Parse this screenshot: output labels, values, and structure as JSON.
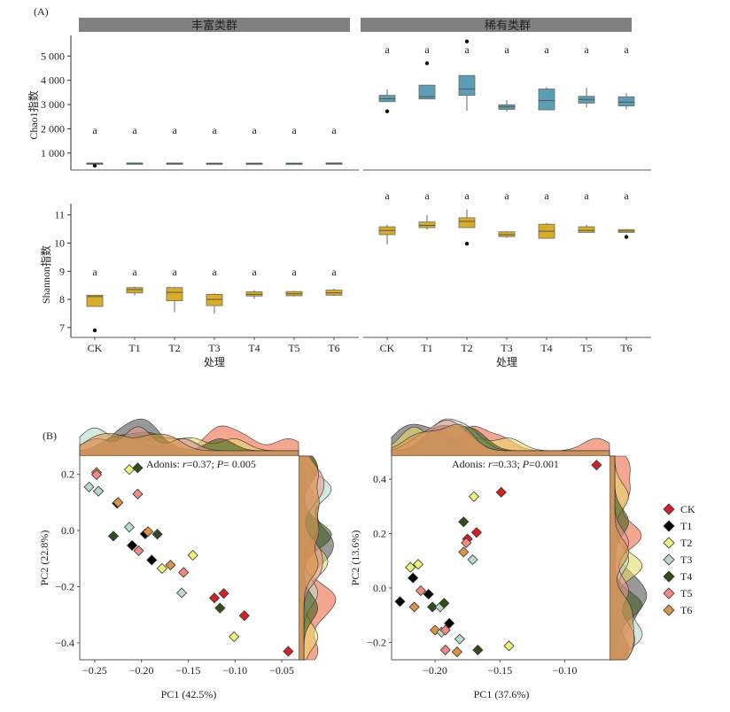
{
  "panel_labels": {
    "a": "(A)",
    "b": "(B)"
  },
  "chart_data": [
    {
      "id": "A_chao1",
      "type": "box",
      "facets": [
        "丰富类群",
        "稀有类群"
      ],
      "categories": [
        "CK",
        "T1",
        "T2",
        "T3",
        "T4",
        "T5",
        "T6"
      ],
      "ylabel": "Chao1指数",
      "yticks": [
        1000,
        2000,
        3000,
        4000,
        5000
      ],
      "ytick_labels": [
        "1 000",
        "2 000",
        "3 000",
        "4 000",
        "5 000"
      ],
      "ylim": [
        300,
        5850
      ],
      "color": "#5b9eb5",
      "significance": [
        "a",
        "a",
        "a",
        "a",
        "a",
        "a",
        "a"
      ],
      "series": [
        {
          "facet": "丰富类群",
          "boxes": [
            {
              "q1": 570,
              "median": 580,
              "q3": 590,
              "min": 560,
              "max": 600,
              "outliers": [
                480
              ]
            },
            {
              "q1": 575,
              "median": 582,
              "q3": 590,
              "min": 570,
              "max": 595,
              "outliers": []
            },
            {
              "q1": 572,
              "median": 580,
              "q3": 590,
              "min": 565,
              "max": 598,
              "outliers": []
            },
            {
              "q1": 572,
              "median": 578,
              "q3": 585,
              "min": 565,
              "max": 590,
              "outliers": []
            },
            {
              "q1": 572,
              "median": 578,
              "q3": 585,
              "min": 565,
              "max": 590,
              "outliers": []
            },
            {
              "q1": 572,
              "median": 578,
              "q3": 585,
              "min": 565,
              "max": 590,
              "outliers": []
            },
            {
              "q1": 570,
              "median": 580,
              "q3": 595,
              "min": 565,
              "max": 600,
              "outliers": []
            }
          ]
        },
        {
          "facet": "稀有类群",
          "boxes": [
            {
              "q1": 3120,
              "median": 3240,
              "q3": 3380,
              "min": 3120,
              "max": 3620,
              "outliers": [
                2720
              ]
            },
            {
              "q1": 3230,
              "median": 3320,
              "q3": 3800,
              "min": 3230,
              "max": 3800,
              "outliers": [
                4700
              ]
            },
            {
              "q1": 3380,
              "median": 3640,
              "q3": 4200,
              "min": 2740,
              "max": 4200,
              "outliers": [
                5600
              ]
            },
            {
              "q1": 2800,
              "median": 2900,
              "q3": 2990,
              "min": 2700,
              "max": 3180,
              "outliers": []
            },
            {
              "q1": 2780,
              "median": 3160,
              "q3": 3640,
              "min": 2780,
              "max": 3720,
              "outliers": []
            },
            {
              "q1": 3060,
              "median": 3210,
              "q3": 3340,
              "min": 2880,
              "max": 3690,
              "outliers": []
            },
            {
              "q1": 2940,
              "median": 3100,
              "q3": 3320,
              "min": 2800,
              "max": 3470,
              "outliers": []
            }
          ]
        }
      ]
    },
    {
      "id": "A_shannon",
      "type": "box",
      "facets": [
        "丰富类群",
        "稀有类群"
      ],
      "categories": [
        "CK",
        "T1",
        "T2",
        "T3",
        "T4",
        "T5",
        "T6"
      ],
      "xlabel": "处理",
      "ylabel": "Shannon指数",
      "yticks": [
        7,
        8,
        9,
        10,
        11
      ],
      "ylim": [
        6.65,
        11.4
      ],
      "color": "#d9ad2c",
      "significance": [
        "a",
        "a",
        "a",
        "a",
        "a",
        "a",
        "a"
      ],
      "series": [
        {
          "facet": "丰富类群",
          "boxes": [
            {
              "q1": 7.75,
              "median": 8.1,
              "q3": 8.15,
              "min": 7.75,
              "max": 8.15,
              "outliers": [
                6.9
              ]
            },
            {
              "q1": 8.23,
              "median": 8.35,
              "q3": 8.42,
              "min": 8.15,
              "max": 8.45,
              "outliers": []
            },
            {
              "q1": 7.95,
              "median": 8.25,
              "q3": 8.42,
              "min": 7.55,
              "max": 8.45,
              "outliers": []
            },
            {
              "q1": 7.78,
              "median": 8.0,
              "q3": 8.18,
              "min": 7.5,
              "max": 8.22,
              "outliers": []
            },
            {
              "q1": 8.12,
              "median": 8.18,
              "q3": 8.27,
              "min": 8.02,
              "max": 8.33,
              "outliers": []
            },
            {
              "q1": 8.13,
              "median": 8.2,
              "q3": 8.28,
              "min": 8.1,
              "max": 8.3,
              "outliers": []
            },
            {
              "q1": 8.15,
              "median": 8.23,
              "q3": 8.33,
              "min": 8.12,
              "max": 8.38,
              "outliers": []
            }
          ]
        },
        {
          "facet": "稀有类群",
          "boxes": [
            {
              "q1": 10.3,
              "median": 10.45,
              "q3": 10.58,
              "min": 9.95,
              "max": 10.65,
              "outliers": []
            },
            {
              "q1": 10.55,
              "median": 10.63,
              "q3": 10.75,
              "min": 10.48,
              "max": 11.0,
              "outliers": []
            },
            {
              "q1": 10.55,
              "median": 10.77,
              "q3": 10.9,
              "min": 10.55,
              "max": 11.2,
              "outliers": [
                9.98
              ]
            },
            {
              "q1": 10.23,
              "median": 10.3,
              "q3": 10.4,
              "min": 10.18,
              "max": 10.42,
              "outliers": []
            },
            {
              "q1": 10.17,
              "median": 10.42,
              "q3": 10.67,
              "min": 10.17,
              "max": 10.72,
              "outliers": []
            },
            {
              "q1": 10.38,
              "median": 10.45,
              "q3": 10.58,
              "min": 10.38,
              "max": 10.65,
              "outliers": []
            },
            {
              "q1": 10.38,
              "median": 10.43,
              "q3": 10.48,
              "min": 10.38,
              "max": 10.5,
              "outliers": [
                10.22
              ]
            }
          ]
        }
      ]
    },
    {
      "id": "B_left",
      "type": "scatter",
      "xlabel": "PC1 (42.5%)",
      "ylabel": "PC2 (22.8%)",
      "xticks": [
        -0.25,
        -0.2,
        -0.15,
        -0.1,
        -0.05
      ],
      "xtick_labels": [
        "−0.25",
        "−0.20",
        "−0.15",
        "−0.10",
        "−0.05"
      ],
      "yticks": [
        0.2,
        0.0,
        -0.2,
        -0.4
      ],
      "ytick_labels": [
        "0.2",
        "0.0",
        "−0.2",
        "−0.4"
      ],
      "xlim": [
        -0.266,
        -0.032
      ],
      "ylim": [
        -0.46,
        0.265
      ],
      "annotation": {
        "prefix": "Adonis: ",
        "r_label": "r",
        "r_value": "=0.37; ",
        "p_label": "P",
        "p_value": "= 0.005"
      },
      "points": [
        {
          "group": "T6",
          "x": -0.248,
          "y": 0.207
        },
        {
          "group": "T5",
          "x": -0.248,
          "y": 0.199
        },
        {
          "group": "T3",
          "x": -0.256,
          "y": 0.155
        },
        {
          "group": "T3",
          "x": -0.246,
          "y": 0.14
        },
        {
          "group": "T2",
          "x": -0.213,
          "y": 0.217
        },
        {
          "group": "T4",
          "x": -0.204,
          "y": 0.223
        },
        {
          "group": "T5",
          "x": -0.204,
          "y": 0.13
        },
        {
          "group": "T1",
          "x": -0.226,
          "y": 0.097
        },
        {
          "group": "T6",
          "x": -0.225,
          "y": 0.1
        },
        {
          "group": "T3",
          "x": -0.213,
          "y": 0.012
        },
        {
          "group": "T4",
          "x": -0.23,
          "y": -0.02
        },
        {
          "group": "T1",
          "x": -0.196,
          "y": -0.012
        },
        {
          "group": "T6",
          "x": -0.193,
          "y": -0.004
        },
        {
          "group": "T4",
          "x": -0.183,
          "y": -0.013
        },
        {
          "group": "T1",
          "x": -0.21,
          "y": -0.053
        },
        {
          "group": "T5",
          "x": -0.203,
          "y": -0.072
        },
        {
          "group": "T1",
          "x": -0.189,
          "y": -0.105
        },
        {
          "group": "T2",
          "x": -0.145,
          "y": -0.088
        },
        {
          "group": "T6",
          "x": -0.169,
          "y": -0.123
        },
        {
          "group": "T2",
          "x": -0.178,
          "y": -0.135
        },
        {
          "group": "T5",
          "x": -0.155,
          "y": -0.149
        },
        {
          "group": "T3",
          "x": -0.157,
          "y": -0.222
        },
        {
          "group": "CK",
          "x": -0.122,
          "y": -0.24
        },
        {
          "group": "CK",
          "x": -0.112,
          "y": -0.224
        },
        {
          "group": "T4",
          "x": -0.116,
          "y": -0.276
        },
        {
          "group": "CK",
          "x": -0.09,
          "y": -0.303
        },
        {
          "group": "T2",
          "x": -0.101,
          "y": -0.378
        },
        {
          "group": "CK",
          "x": -0.043,
          "y": -0.43
        }
      ]
    },
    {
      "id": "B_right",
      "type": "scatter",
      "xlabel": "PC1 (37.6%)",
      "ylabel": "PC2 (13.6%)",
      "xticks": [
        -0.2,
        -0.15,
        -0.1
      ],
      "xtick_labels": [
        "−0.20",
        "−0.15",
        "−0.10"
      ],
      "yticks": [
        0.4,
        0.2,
        0.0,
        -0.2
      ],
      "ytick_labels": [
        "0.4",
        "0.2",
        "0.0",
        "−0.2"
      ],
      "xlim": [
        -0.2335,
        -0.0655
      ],
      "ylim": [
        -0.264,
        0.485
      ],
      "annotation": {
        "prefix": "Adonis: ",
        "r_label": "r",
        "r_value": "=0.33; ",
        "p_label": "P",
        "p_value": "=0.001"
      },
      "points": [
        {
          "group": "CK",
          "x": -0.0755,
          "y": 0.452
        },
        {
          "group": "CK",
          "x": -0.149,
          "y": 0.352
        },
        {
          "group": "T2",
          "x": -0.17,
          "y": 0.336
        },
        {
          "group": "T4",
          "x": -0.178,
          "y": 0.243
        },
        {
          "group": "CK",
          "x": -0.168,
          "y": 0.204
        },
        {
          "group": "CK",
          "x": -0.175,
          "y": 0.18
        },
        {
          "group": "T5",
          "x": -0.176,
          "y": 0.166
        },
        {
          "group": "T6",
          "x": -0.178,
          "y": 0.132
        },
        {
          "group": "T3",
          "x": -0.171,
          "y": 0.104
        },
        {
          "group": "T2",
          "x": -0.213,
          "y": 0.087
        },
        {
          "group": "T2",
          "x": -0.219,
          "y": 0.076
        },
        {
          "group": "T1",
          "x": -0.217,
          "y": 0.037
        },
        {
          "group": "T5",
          "x": -0.211,
          "y": -0.01
        },
        {
          "group": "T1",
          "x": -0.205,
          "y": -0.023
        },
        {
          "group": "T1",
          "x": -0.227,
          "y": -0.05
        },
        {
          "group": "T6",
          "x": -0.216,
          "y": -0.07
        },
        {
          "group": "T4",
          "x": -0.202,
          "y": -0.07
        },
        {
          "group": "T3",
          "x": -0.196,
          "y": -0.07
        },
        {
          "group": "T4",
          "x": -0.193,
          "y": -0.056
        },
        {
          "group": "T1",
          "x": -0.189,
          "y": -0.13
        },
        {
          "group": "T6",
          "x": -0.2,
          "y": -0.155
        },
        {
          "group": "T3",
          "x": -0.195,
          "y": -0.163
        },
        {
          "group": "T5",
          "x": -0.192,
          "y": -0.155
        },
        {
          "group": "T3",
          "x": -0.181,
          "y": -0.188
        },
        {
          "group": "T2",
          "x": -0.143,
          "y": -0.213
        },
        {
          "group": "T5",
          "x": -0.192,
          "y": -0.228
        },
        {
          "group": "T6",
          "x": -0.183,
          "y": -0.235
        },
        {
          "group": "T4",
          "x": -0.167,
          "y": -0.228
        }
      ]
    }
  ],
  "legend": {
    "placement": "right",
    "items": [
      {
        "label": "CK",
        "color": "#d42027"
      },
      {
        "label": "T1",
        "color": "#000000"
      },
      {
        "label": "T2",
        "color": "#eef07a"
      },
      {
        "label": "T3",
        "color": "#b6d9c8"
      },
      {
        "label": "T4",
        "color": "#2f4f1a"
      },
      {
        "label": "T5",
        "color": "#f08a85"
      },
      {
        "label": "T6",
        "color": "#d9944a"
      }
    ]
  },
  "density_colors": {
    "CK": "#ee6a47",
    "T1": "#555555",
    "T2": "#e8d96a",
    "T3": "#b6d9c8",
    "T4": "#3f5f22",
    "T5": "#eb9a93",
    "T6": "#d9944a"
  }
}
